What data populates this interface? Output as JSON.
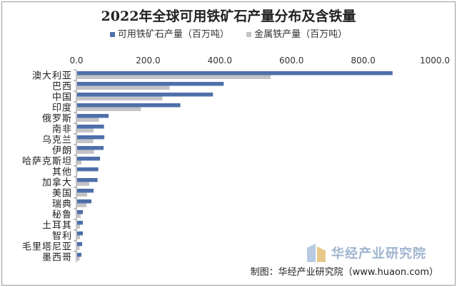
{
  "chart_data": {
    "type": "bar",
    "orientation": "horizontal",
    "title": "2022年全球可用铁矿石产量分布及含铁量",
    "categories": [
      "澳大利亚",
      "巴西",
      "中国",
      "印度",
      "俄罗斯",
      "南非",
      "乌克兰",
      "伊朗",
      "哈萨克斯坦",
      "其他",
      "加拿大",
      "美国",
      "瑞典",
      "秘鲁",
      "土耳其",
      "智利",
      "毛里塔尼亚",
      "墨西哥"
    ],
    "series": [
      {
        "name": "可用铁矿石产量（百万吨）",
        "color": "#4f6fa8",
        "values": [
          880,
          409,
          379,
          288,
          88,
          75,
          76,
          74,
          64,
          59,
          57,
          46,
          40,
          16,
          16,
          16,
          14,
          12
        ]
      },
      {
        "name": "金属铁产量（百万吨）",
        "color": "#c3c3c8",
        "values": [
          540,
          258,
          238,
          178,
          61,
          46,
          45,
          47,
          12,
          1,
          34,
          28,
          26,
          10,
          8,
          8,
          7,
          7
        ]
      }
    ],
    "xlim": [
      0,
      1000
    ],
    "ticks": [
      "0.0",
      "200.0",
      "400.0",
      "600.0",
      "800.0",
      "1000.0"
    ],
    "axis_position": "top",
    "legend": "top",
    "grid": false
  },
  "footer": "制图：华经产业研究院（www.huaon.com）",
  "watermark": "华经产业研究院"
}
